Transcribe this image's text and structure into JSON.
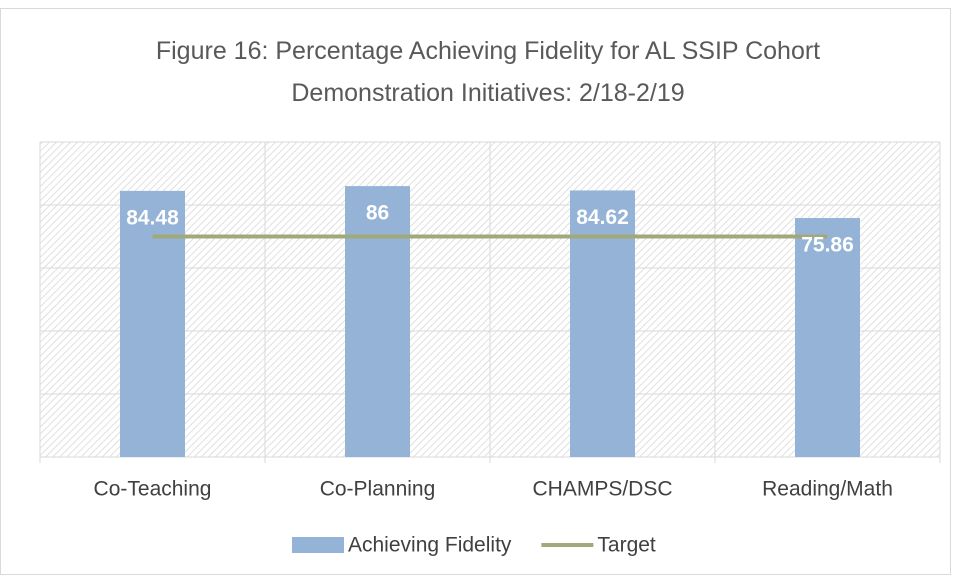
{
  "chart_data": {
    "type": "bar",
    "title": "Figure 16: Percentage Achieving Fidelity for AL SSIP Cohort Demonstration Initiatives: 2/18-2/19",
    "categories": [
      "Co-Teaching",
      "Co-Planning",
      "CHAMPS/DSC",
      "Reading/Math"
    ],
    "series": [
      {
        "name": "Achieving Fidelity",
        "type": "bar",
        "color": "#95b3d7",
        "values": [
          84.48,
          86,
          84.62,
          75.86
        ]
      },
      {
        "name": "Target",
        "type": "line",
        "color": "#a1a97a",
        "values": [
          70,
          70,
          70,
          70
        ]
      }
    ],
    "ylim": [
      0,
      100
    ],
    "yticks": [
      0,
      20,
      40,
      60,
      80,
      100
    ],
    "grid": true
  }
}
